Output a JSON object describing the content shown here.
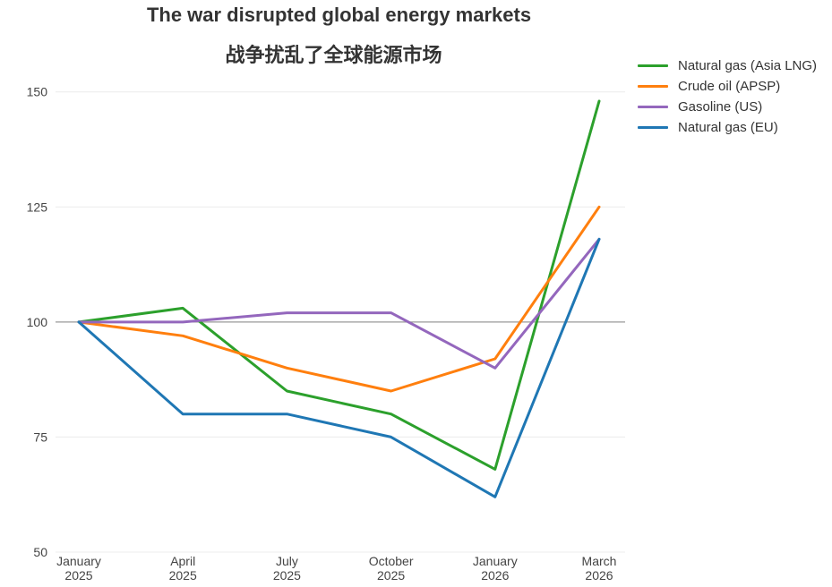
{
  "chart_data": {
    "type": "line",
    "title": "The war disrupted global energy markets",
    "subtitle": "战争扰乱了全球能源市场",
    "xlabel": "",
    "ylabel": "",
    "categories": [
      [
        "January",
        "2025"
      ],
      [
        "April",
        "2025"
      ],
      [
        "July",
        "2025"
      ],
      [
        "October",
        "2025"
      ],
      [
        "January",
        "2026"
      ],
      [
        "March",
        "2026"
      ]
    ],
    "ylim": [
      50,
      155
    ],
    "yticks": [
      50,
      75,
      100,
      125,
      150
    ],
    "reference_line": 100,
    "grid": true,
    "legend_position": "top-right",
    "series": [
      {
        "name": "Natural gas (Asia LNG)",
        "color": "#2ca02c",
        "values": [
          100,
          103,
          85,
          80,
          68,
          148
        ]
      },
      {
        "name": "Crude oil (APSP)",
        "color": "#ff7f0e",
        "values": [
          100,
          97,
          90,
          85,
          92,
          125
        ]
      },
      {
        "name": "Gasoline (US)",
        "color": "#9467bd",
        "values": [
          100,
          100,
          102,
          102,
          90,
          118
        ]
      },
      {
        "name": "Natural gas (EU)",
        "color": "#1f77b4",
        "values": [
          100,
          80,
          80,
          75,
          62,
          118
        ]
      }
    ]
  }
}
